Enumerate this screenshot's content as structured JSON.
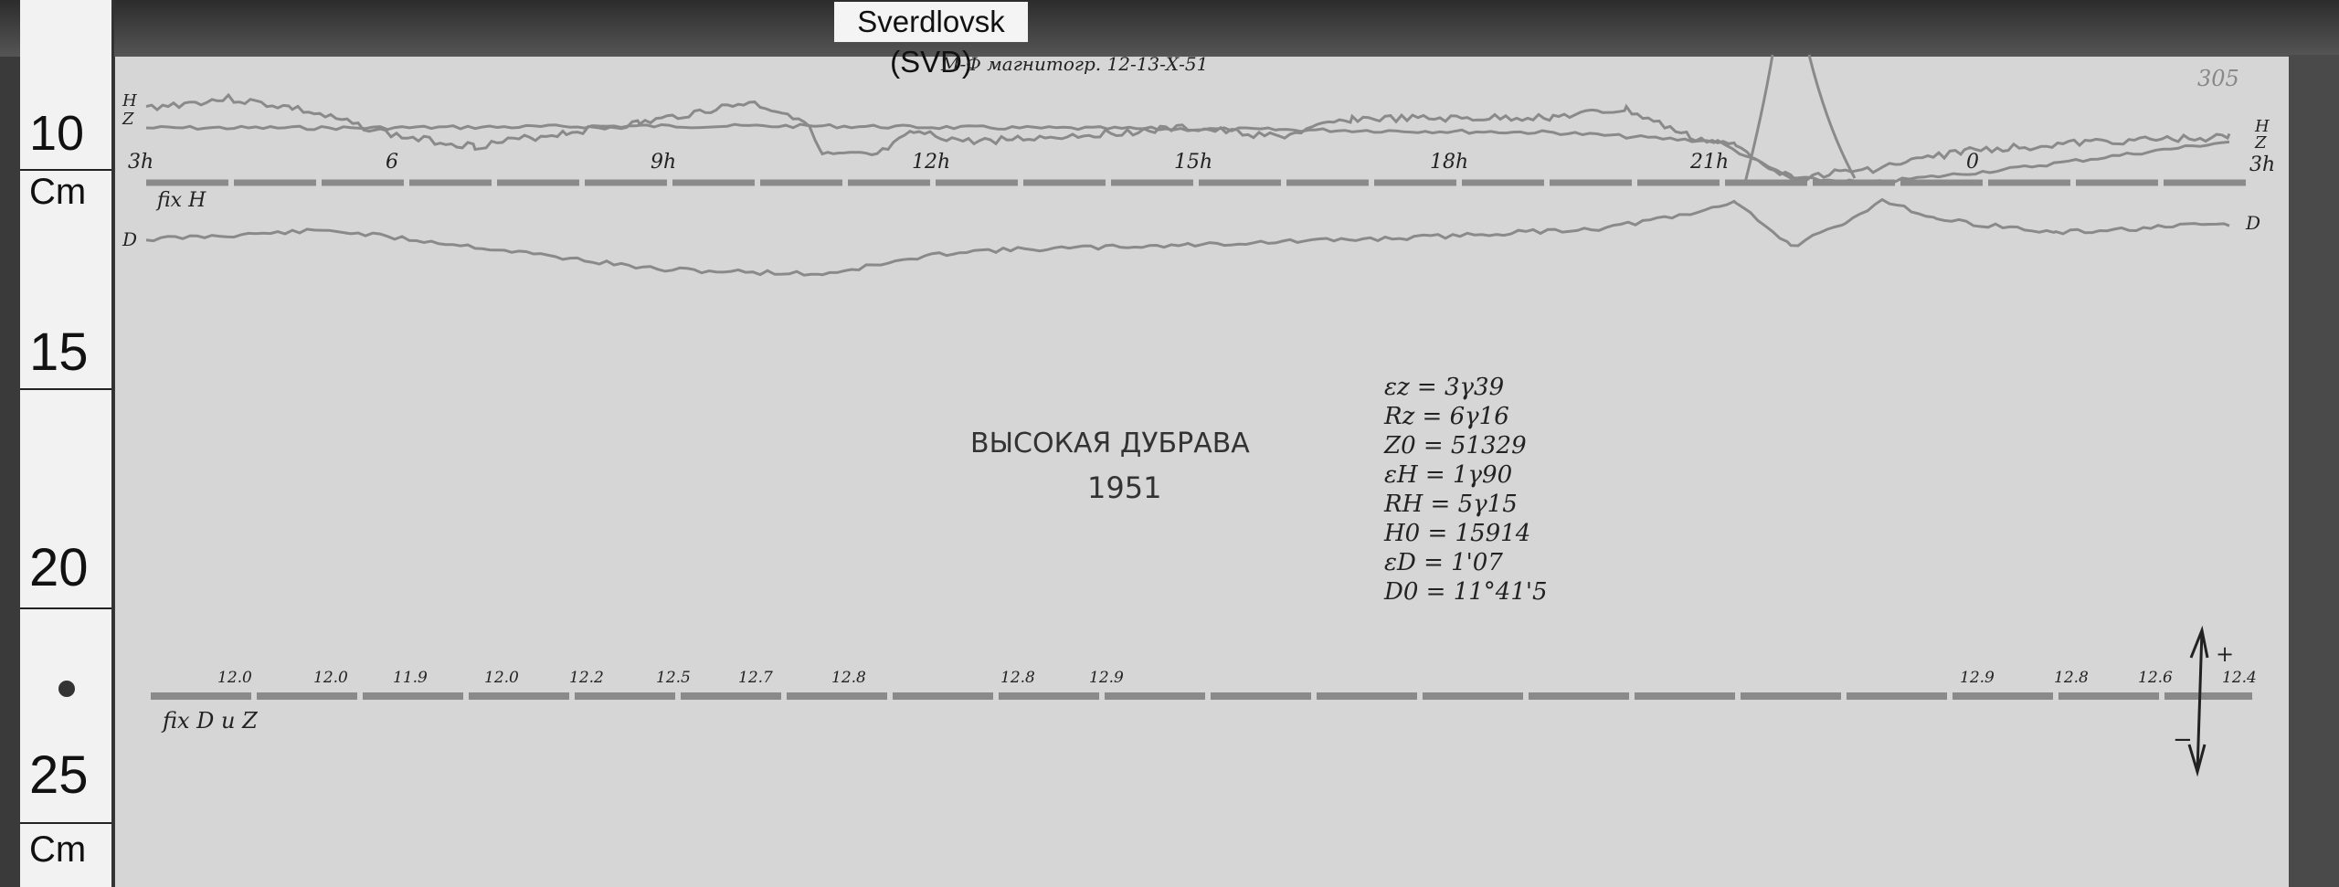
{
  "station_label": "Sverdlovsk (SVD)",
  "header_note": "М-Ф магнитогр. 12-13-Х-51",
  "sheet_number": "305",
  "ruler": {
    "marks": [
      "10",
      "Cm",
      "15",
      "20",
      "25",
      "Cm"
    ]
  },
  "trace_labels": {
    "h": "H",
    "z": "Z",
    "d": "D",
    "h_right": "H",
    "z_right": "Z",
    "d_right": "D"
  },
  "hour_labels": [
    "3h",
    "6",
    "9h",
    "12h",
    "15h",
    "18h",
    "21h",
    "0",
    "3h"
  ],
  "baseline_labels": {
    "fix_h": "fix H",
    "fix_dz": "fix D и Z"
  },
  "title": {
    "place": "ВЫСОКАЯ ДУБРАВА",
    "year": "1951"
  },
  "parameters": [
    "εz = 3γ39",
    "Rz = 6γ16",
    "Z0 = 51329",
    "εH = 1γ90",
    "RH = 5γ15",
    "H0 = 15914",
    "εD = 1'07",
    "D0 = 11°41'5"
  ],
  "baseline_values": [
    "12.0",
    "12.0",
    "11.9",
    "12.0",
    "12.2",
    "12.5",
    "12.7",
    "12.8",
    "12.8",
    "12.9",
    "12.9",
    "12.8",
    "12.6",
    "12.4"
  ],
  "direction": {
    "plus": "+",
    "minus": "−"
  },
  "colors": {
    "paper": "#d6d6d6",
    "trace": "#8a8a8a",
    "ink": "#222222"
  }
}
